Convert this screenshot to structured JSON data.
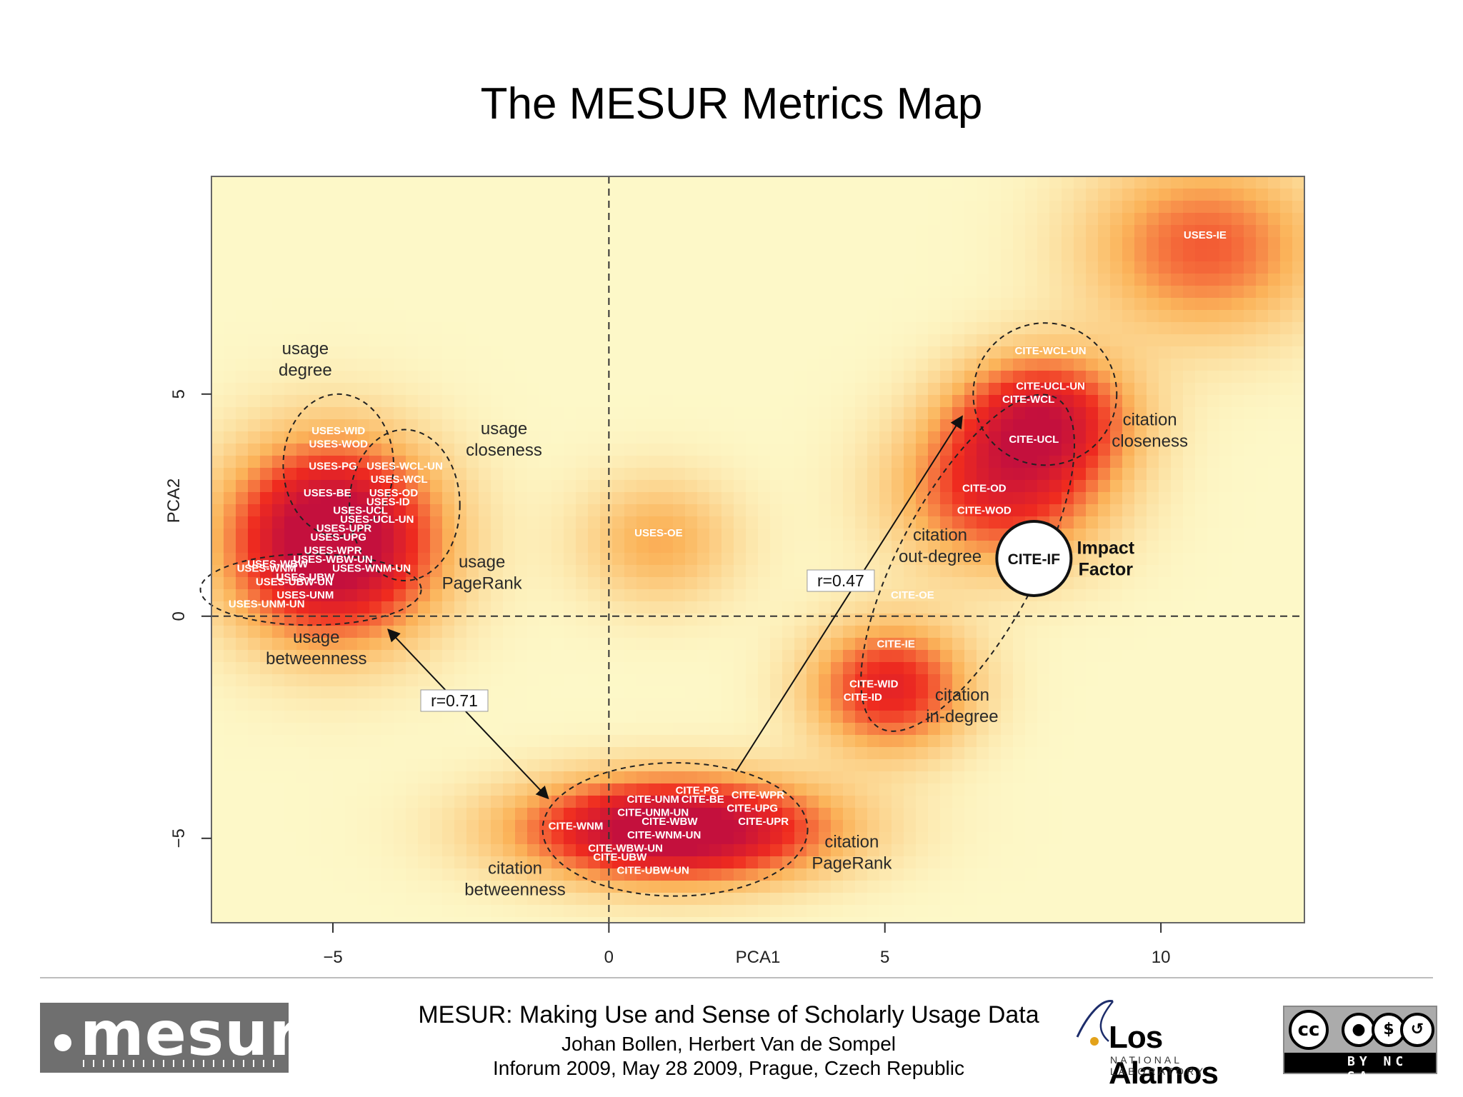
{
  "slide": {
    "title": "The MESUR Metrics Map"
  },
  "chart_data": {
    "type": "heatmap",
    "title": "",
    "xlabel": "PCA1",
    "ylabel": "PCA2",
    "xlim": [
      -7.2,
      12.6
    ],
    "ylim": [
      -6.9,
      9.9
    ],
    "x_ticks": [
      -5,
      0,
      5,
      10
    ],
    "x_tick_labels": [
      "−5",
      "0",
      "5",
      "10"
    ],
    "y_ticks": [
      -5,
      0,
      5
    ],
    "y_tick_labels": [
      "−5",
      "0",
      "5"
    ],
    "reference_lines": {
      "x": 0,
      "y": 0,
      "style": "dashed"
    },
    "colors": {
      "low": "#fdf8c8",
      "mid": "#fbb45a",
      "high": "#ef2b1f",
      "peak": "#c4103d"
    },
    "density_centers": [
      {
        "x": -5.0,
        "y": 1.7,
        "weight": 1.25,
        "sx": 1.3,
        "sy": 1.5
      },
      {
        "x": 1.2,
        "y": -4.8,
        "weight": 1.2,
        "sx": 1.9,
        "sy": 0.8
      },
      {
        "x": 5.1,
        "y": -1.6,
        "weight": 0.75,
        "sx": 1.0,
        "sy": 1.0
      },
      {
        "x": 7.1,
        "y": 2.8,
        "weight": 0.7,
        "sx": 1.3,
        "sy": 1.2
      },
      {
        "x": 7.9,
        "y": 4.5,
        "weight": 0.8,
        "sx": 1.1,
        "sy": 1.0
      },
      {
        "x": 10.8,
        "y": 8.3,
        "weight": 0.55,
        "sx": 1.5,
        "sy": 1.4
      },
      {
        "x": 0.9,
        "y": 1.7,
        "weight": 0.35,
        "sx": 1.0,
        "sy": 1.0
      }
    ],
    "points": [
      {
        "label": "USES-WID",
        "x": -4.9,
        "y": 4.1
      },
      {
        "label": "USES-WOD",
        "x": -4.9,
        "y": 3.8
      },
      {
        "label": "USES-PG",
        "x": -5.0,
        "y": 3.3
      },
      {
        "label": "USES-WCL-UN",
        "x": -3.7,
        "y": 3.3
      },
      {
        "label": "USES-WCL",
        "x": -3.8,
        "y": 3.0
      },
      {
        "label": "USES-BE",
        "x": -5.1,
        "y": 2.7
      },
      {
        "label": "USES-OD",
        "x": -3.9,
        "y": 2.7
      },
      {
        "label": "USES-ID",
        "x": -4.0,
        "y": 2.5
      },
      {
        "label": "USES-UCL",
        "x": -4.5,
        "y": 2.3
      },
      {
        "label": "USES-UCL-UN",
        "x": -4.2,
        "y": 2.1
      },
      {
        "label": "USES-UPR",
        "x": -4.8,
        "y": 1.9
      },
      {
        "label": "USES-UPG",
        "x": -4.9,
        "y": 1.7
      },
      {
        "label": "USES-WPR",
        "x": -5.0,
        "y": 1.4
      },
      {
        "label": "USES-WBW-UN",
        "x": -5.0,
        "y": 1.2
      },
      {
        "label": "USES-WBW",
        "x": -6.0,
        "y": 1.1
      },
      {
        "label": "USES-WNM",
        "x": -6.2,
        "y": 1.0
      },
      {
        "label": "USES-WNM-UN",
        "x": -4.3,
        "y": 1.0
      },
      {
        "label": "USES-UBW",
        "x": -5.5,
        "y": 0.8
      },
      {
        "label": "USES-UBW-UN",
        "x": -5.7,
        "y": 0.7
      },
      {
        "label": "USES-UNM",
        "x": -5.5,
        "y": 0.4
      },
      {
        "label": "USES-UNM-UN",
        "x": -6.2,
        "y": 0.2
      },
      {
        "label": "USES-OE",
        "x": 0.9,
        "y": 1.8
      },
      {
        "label": "USES-IE",
        "x": 10.8,
        "y": 8.5
      },
      {
        "label": "CITE-WCL-UN",
        "x": 8.0,
        "y": 5.9
      },
      {
        "label": "CITE-UCL-UN",
        "x": 8.0,
        "y": 5.1
      },
      {
        "label": "CITE-WCL",
        "x": 7.6,
        "y": 4.8
      },
      {
        "label": "CITE-UCL",
        "x": 7.7,
        "y": 3.9
      },
      {
        "label": "CITE-OD",
        "x": 6.8,
        "y": 2.8
      },
      {
        "label": "CITE-WOD",
        "x": 6.8,
        "y": 2.3
      },
      {
        "label": "CITE-IF",
        "x": 7.7,
        "y": 1.3
      },
      {
        "label": "CITE-OE",
        "x": 5.5,
        "y": 0.4
      },
      {
        "label": "CITE-IE",
        "x": 5.2,
        "y": -0.7
      },
      {
        "label": "CITE-WID",
        "x": 4.8,
        "y": -1.6
      },
      {
        "label": "CITE-ID",
        "x": 4.6,
        "y": -1.9
      },
      {
        "label": "CITE-PG",
        "x": 1.6,
        "y": -4.0
      },
      {
        "label": "CITE-BE",
        "x": 1.7,
        "y": -4.2
      },
      {
        "label": "CITE-WPR",
        "x": 2.7,
        "y": -4.1
      },
      {
        "label": "CITE-UNM",
        "x": 0.8,
        "y": -4.2
      },
      {
        "label": "CITE-UNM-UN",
        "x": 0.8,
        "y": -4.5
      },
      {
        "label": "CITE-UPG",
        "x": 2.6,
        "y": -4.4
      },
      {
        "label": "CITE-WBW",
        "x": 1.1,
        "y": -4.7
      },
      {
        "label": "CITE-UPR",
        "x": 2.8,
        "y": -4.7
      },
      {
        "label": "CITE-WNM",
        "x": -0.6,
        "y": -4.8
      },
      {
        "label": "CITE-WNM-UN",
        "x": 1.0,
        "y": -5.0
      },
      {
        "label": "CITE-WBW-UN",
        "x": 0.3,
        "y": -5.3
      },
      {
        "label": "CITE-UBW",
        "x": 0.2,
        "y": -5.5
      },
      {
        "label": "CITE-UBW-UN",
        "x": 0.8,
        "y": -5.8
      }
    ],
    "group_labels": [
      {
        "lines": [
          "usage",
          "degree"
        ],
        "x": -5.5,
        "y": 5.9
      },
      {
        "lines": [
          "usage",
          "closeness"
        ],
        "x": -1.9,
        "y": 4.1
      },
      {
        "lines": [
          "usage",
          "PageRank"
        ],
        "x": -2.3,
        "y": 1.1
      },
      {
        "lines": [
          "usage",
          "betweenness"
        ],
        "x": -5.3,
        "y": -0.6
      },
      {
        "lines": [
          "citation",
          "closeness"
        ],
        "x": 9.8,
        "y": 4.3
      },
      {
        "lines": [
          "citation",
          "out-degree"
        ],
        "x": 6.0,
        "y": 1.7
      },
      {
        "lines": [
          "citation",
          "in-degree"
        ],
        "x": 6.4,
        "y": -1.9
      },
      {
        "lines": [
          "citation",
          "PageRank"
        ],
        "x": 4.4,
        "y": -5.2
      },
      {
        "lines": [
          "citation",
          "betweenness"
        ],
        "x": -1.7,
        "y": -5.8
      }
    ],
    "impact_factor_label": {
      "lines": [
        "Impact",
        "Factor"
      ],
      "x": 9.0,
      "y": 1.4
    },
    "ellipses": [
      {
        "name": "usage-degree-ellipse",
        "cx": -4.9,
        "cy": 3.4,
        "rx": 1.0,
        "ry": 1.6
      },
      {
        "name": "usage-closeness-ellipse",
        "cx": -3.7,
        "cy": 2.5,
        "rx": 1.0,
        "ry": 1.7
      },
      {
        "name": "usage-pagerank-ellipse",
        "cx": -5.4,
        "cy": 0.6,
        "rx": 2.0,
        "ry": 0.8
      },
      {
        "name": "citation-closeness-ellipse",
        "cx": 7.9,
        "cy": 5.0,
        "rx": 1.3,
        "ry": 1.6
      },
      {
        "name": "citation-pagerank-ellipse",
        "cx": 1.2,
        "cy": -4.8,
        "rx": 2.4,
        "ry": 1.5
      }
    ],
    "correlations": [
      {
        "label": "r=0.71",
        "x": -2.8,
        "y": -1.9
      },
      {
        "label": "r=0.47",
        "x": 4.2,
        "y": 0.8
      }
    ],
    "arrows": [
      {
        "from": [
          -1.1,
          -4.1
        ],
        "to": [
          -4.0,
          -0.3
        ],
        "double": true
      },
      {
        "from": [
          2.3,
          -3.5
        ],
        "to": [
          6.4,
          4.5
        ],
        "double": false
      }
    ]
  },
  "footer": {
    "line1": "MESUR: Making Use and Sense of Scholarly Usage Data",
    "line2": "Johan Bollen, Herbert Van de Sompel",
    "line3": "Inforum 2009, May 28 2009, Prague, Czech Republic",
    "logo_mesur": "mesur",
    "lab_name": "Los Alamos",
    "lab_sub": "NATIONAL LABORATORY",
    "cc_symbol": "cc",
    "cc_terms": "BY NC SA"
  }
}
